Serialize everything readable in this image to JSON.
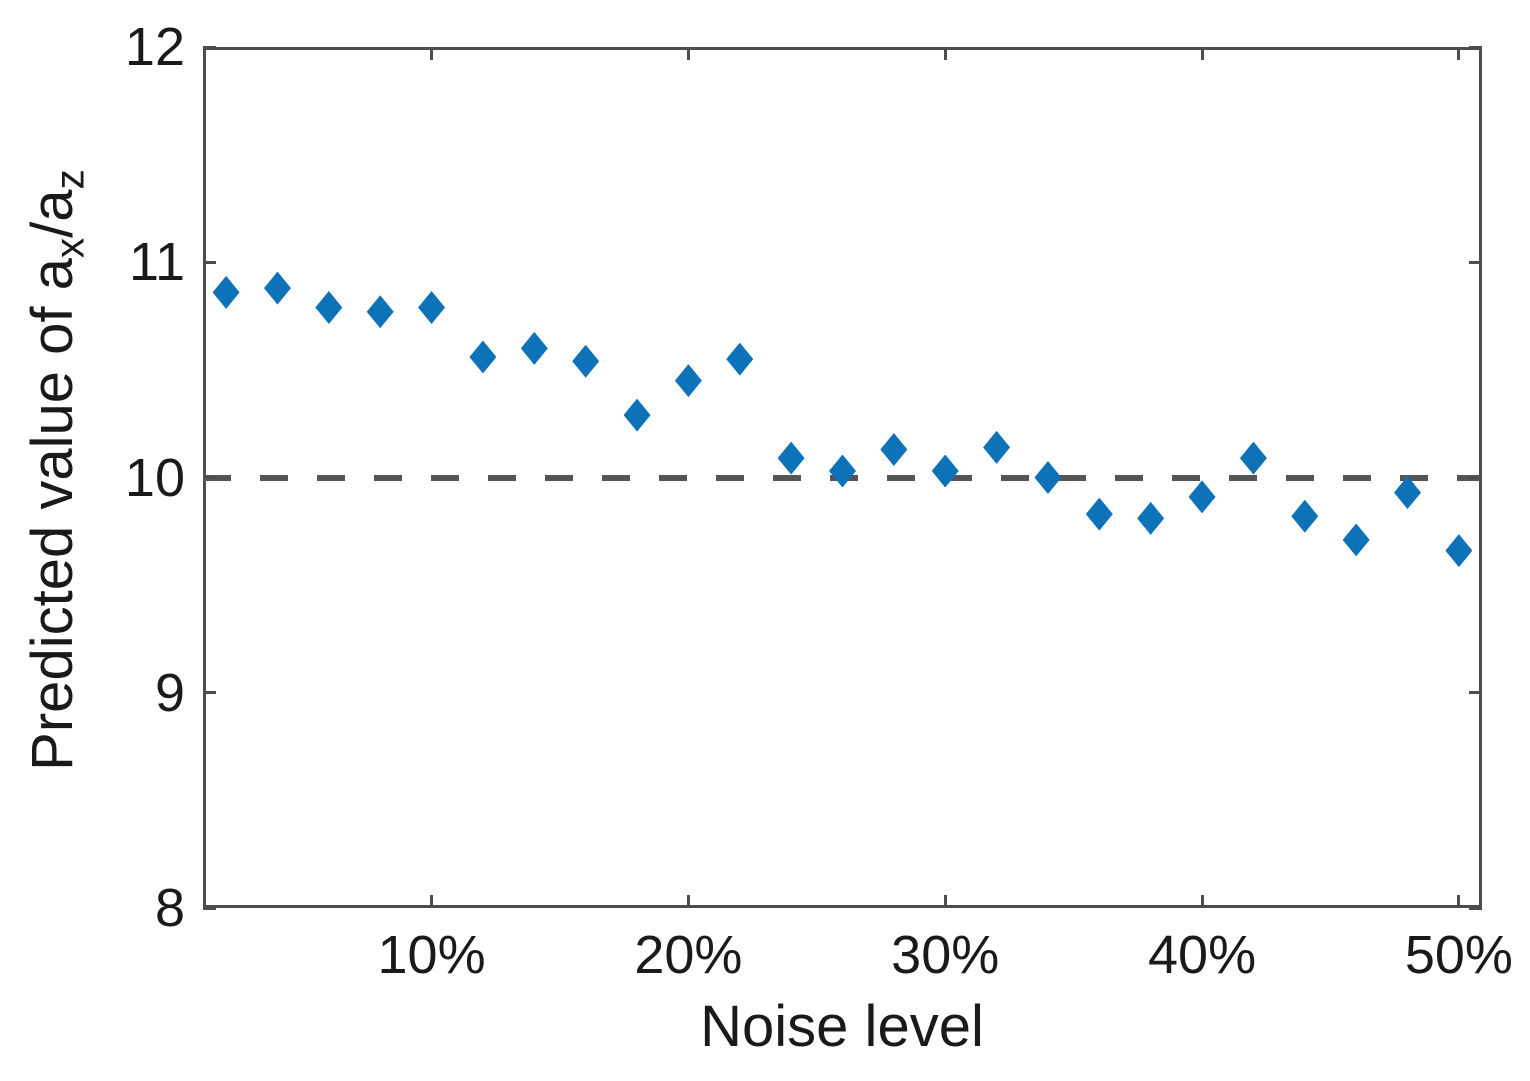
{
  "figure": {
    "background": "#ffffff"
  },
  "chart_data": {
    "type": "scatter",
    "title": "",
    "xlabel": "Noise level",
    "ylabel": "Predicted value of a_x/a_z",
    "ylabel_parts": {
      "pre": "Predicted value of a",
      "sub1": "x",
      "mid": "/a",
      "sub2": "z"
    },
    "xlim": [
      1.1,
      50.9
    ],
    "ylim": [
      8,
      12
    ],
    "x_unit": "percent",
    "grid": false,
    "legend": null,
    "xticks": [
      {
        "value": 10,
        "label": "10%"
      },
      {
        "value": 20,
        "label": "20%"
      },
      {
        "value": 30,
        "label": "30%"
      },
      {
        "value": 40,
        "label": "40%"
      },
      {
        "value": 50,
        "label": "50%"
      }
    ],
    "yticks": [
      {
        "value": 8,
        "label": "8"
      },
      {
        "value": 9,
        "label": "9"
      },
      {
        "value": 10,
        "label": "10"
      },
      {
        "value": 11,
        "label": "11"
      },
      {
        "value": 12,
        "label": "12"
      }
    ],
    "reference_line": {
      "y": 10,
      "style": "dashed",
      "color": "#555555"
    },
    "series": [
      {
        "name": "Predicted ax/az",
        "marker": "diamond",
        "color": "#0d72b8",
        "points": [
          {
            "x": 2,
            "y": 10.86
          },
          {
            "x": 4,
            "y": 10.88
          },
          {
            "x": 6,
            "y": 10.79
          },
          {
            "x": 8,
            "y": 10.77
          },
          {
            "x": 10,
            "y": 10.79
          },
          {
            "x": 12,
            "y": 10.56
          },
          {
            "x": 14,
            "y": 10.6
          },
          {
            "x": 16,
            "y": 10.54
          },
          {
            "x": 18,
            "y": 10.29
          },
          {
            "x": 20,
            "y": 10.45
          },
          {
            "x": 22,
            "y": 10.55
          },
          {
            "x": 24,
            "y": 10.09
          },
          {
            "x": 26,
            "y": 10.03
          },
          {
            "x": 28,
            "y": 10.13
          },
          {
            "x": 30,
            "y": 10.03
          },
          {
            "x": 32,
            "y": 10.14
          },
          {
            "x": 34,
            "y": 10.0
          },
          {
            "x": 36,
            "y": 9.83
          },
          {
            "x": 38,
            "y": 9.81
          },
          {
            "x": 40,
            "y": 9.91
          },
          {
            "x": 42,
            "y": 10.09
          },
          {
            "x": 44,
            "y": 9.82
          },
          {
            "x": 46,
            "y": 9.71
          },
          {
            "x": 48,
            "y": 9.93
          },
          {
            "x": 50,
            "y": 9.66
          }
        ]
      }
    ],
    "axis_color": "#4d4d4d",
    "text_color": "#1a1a1a"
  }
}
